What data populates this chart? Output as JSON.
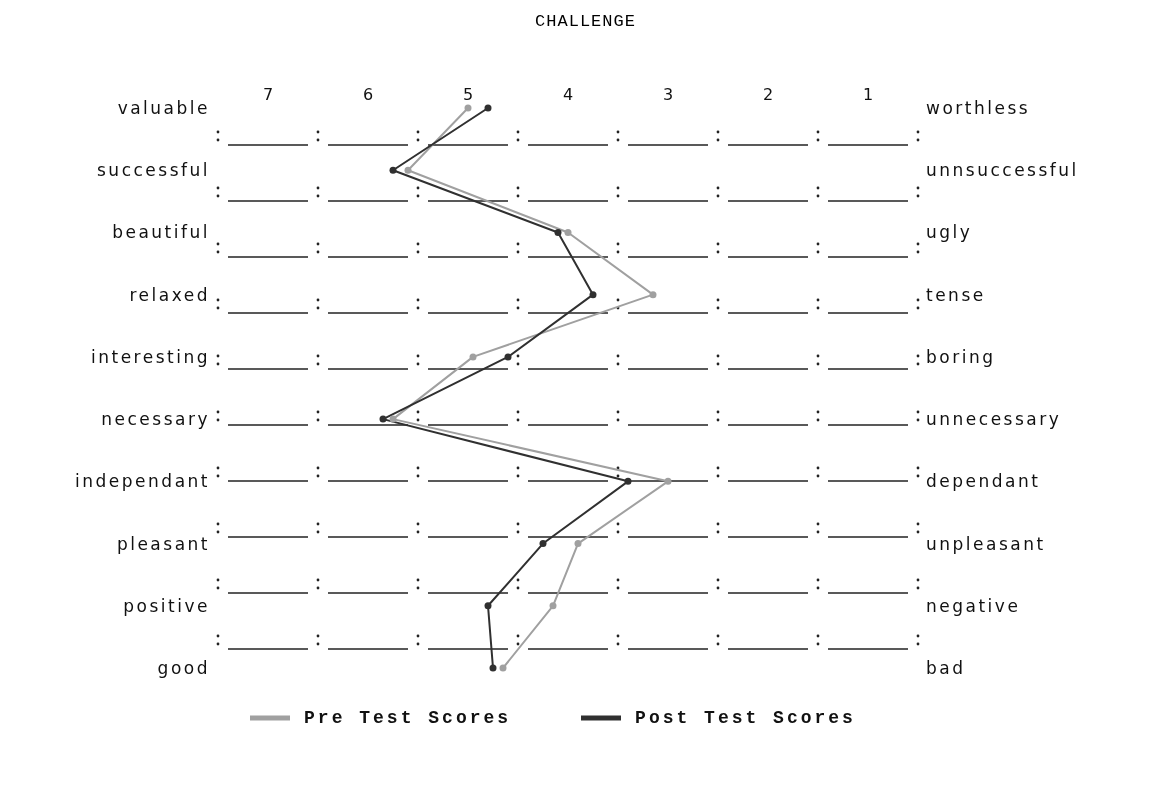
{
  "chart_data": {
    "type": "line",
    "title": "CHALLENGE",
    "categories": [
      "valuable",
      "successful",
      "beautiful",
      "relaxed",
      "interesting",
      "necessary",
      "independant",
      "pleasant",
      "positive",
      "good"
    ],
    "annotations": [
      "worthless",
      "unnsuccessful",
      "ugly",
      "tense",
      "boring",
      "unnecessary",
      "dependant",
      "unpleasant",
      "negative",
      "bad"
    ],
    "orientation": "horizontal",
    "xlim": [
      7,
      1
    ],
    "xticks": [
      7,
      6,
      5,
      4,
      3,
      2,
      1
    ],
    "series": [
      {
        "name": "Pre Test Scores",
        "color": "#a0a0a0",
        "values": [
          5.0,
          5.6,
          4.0,
          3.15,
          4.95,
          5.75,
          3.0,
          3.9,
          4.15,
          4.65
        ]
      },
      {
        "name": "Post Test Scores",
        "color": "#303030",
        "values": [
          4.8,
          5.75,
          4.1,
          3.75,
          4.6,
          5.85,
          3.4,
          4.25,
          4.8,
          4.75
        ]
      }
    ],
    "marker": "circle",
    "line_style": "solid",
    "legend": "bottom"
  }
}
